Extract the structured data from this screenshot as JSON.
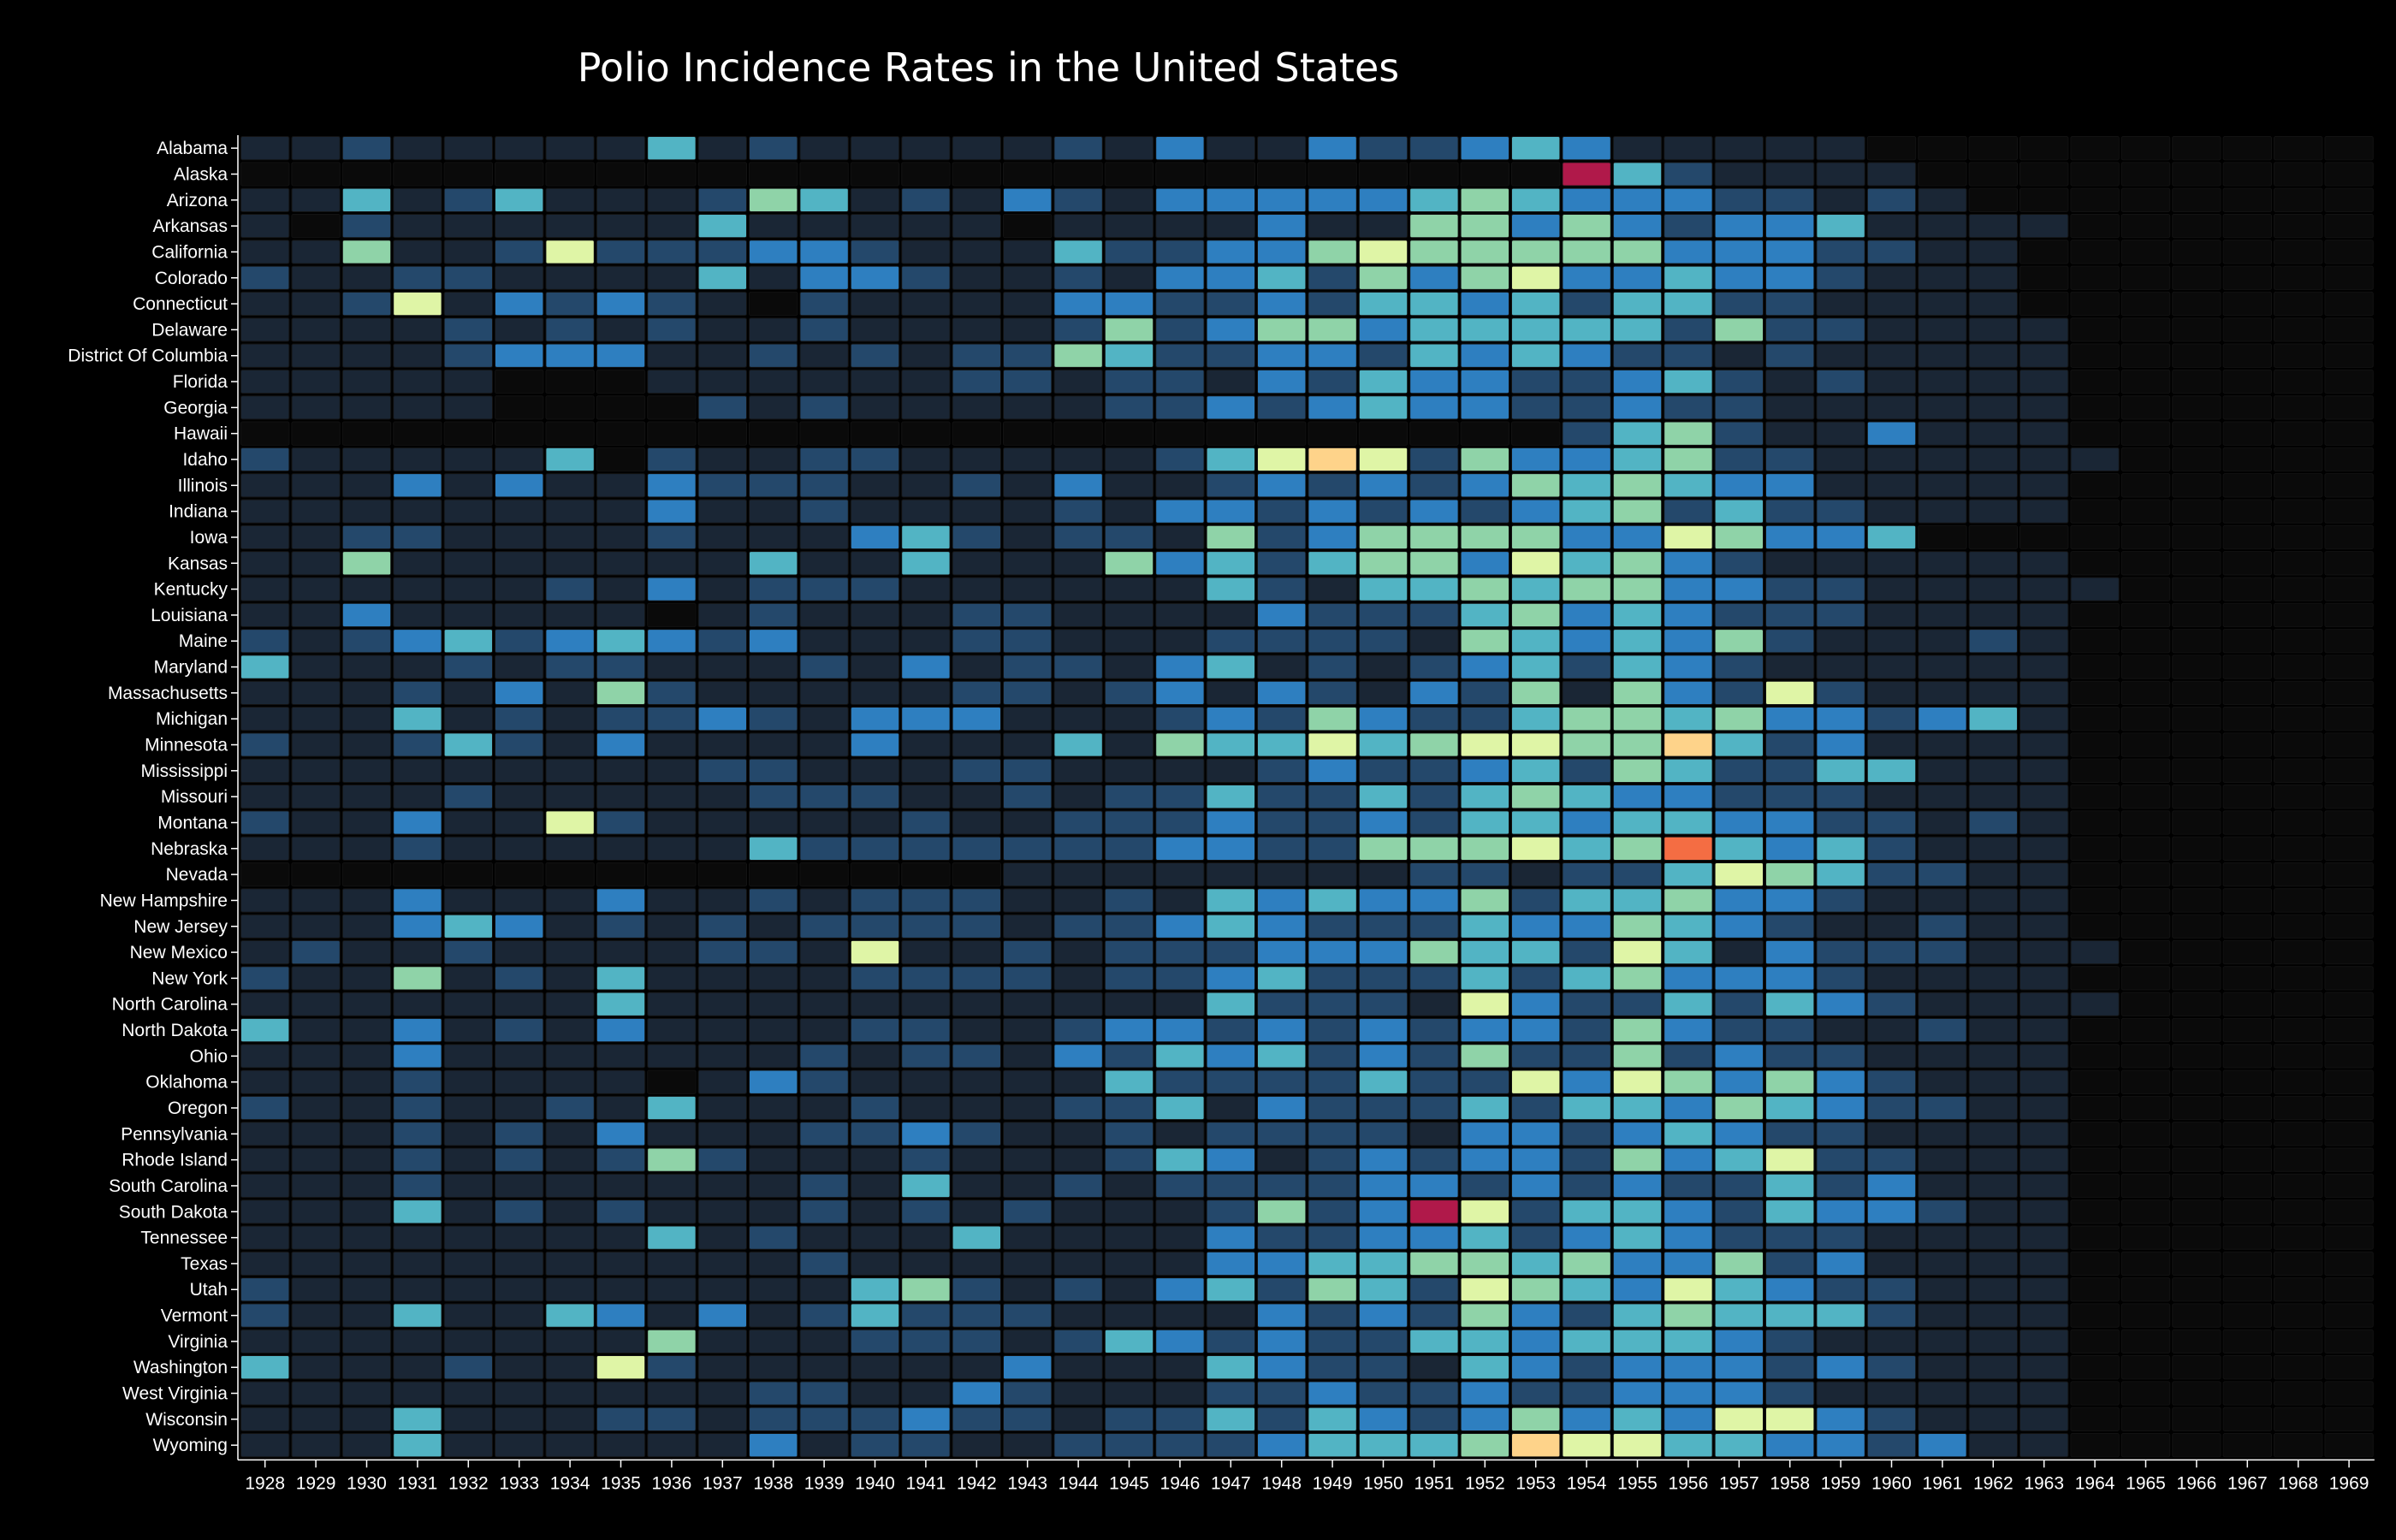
{
  "chart_data": {
    "type": "heatmap",
    "title": "Polio Incidence Rates in the United States",
    "colors": [
      "#0a0a0a",
      "#1a2635",
      "#24486b",
      "#2e7fc0",
      "#52b4c4",
      "#8fd3a8",
      "#dff5a6",
      "#fed38a",
      "#f46d43",
      "#b0194a"
    ],
    "columns": [
      "1928",
      "1929",
      "1930",
      "1931",
      "1932",
      "1933",
      "1934",
      "1935",
      "1936",
      "1937",
      "1938",
      "1939",
      "1940",
      "1941",
      "1942",
      "1943",
      "1944",
      "1945",
      "1946",
      "1947",
      "1948",
      "1949",
      "1950",
      "1951",
      "1952",
      "1953",
      "1954",
      "1955",
      "1956",
      "1957",
      "1958",
      "1959",
      "1960",
      "1961",
      "1962",
      "1963",
      "1964",
      "1965",
      "1966",
      "1967",
      "1968",
      "1969"
    ],
    "rows": [
      "Alabama",
      "Alaska",
      "Arizona",
      "Arkansas",
      "California",
      "Colorado",
      "Connecticut",
      "Delaware",
      "District Of Columbia",
      "Florida",
      "Georgia",
      "Hawaii",
      "Idaho",
      "Illinois",
      "Indiana",
      "Iowa",
      "Kansas",
      "Kentucky",
      "Louisiana",
      "Maine",
      "Maryland",
      "Massachusetts",
      "Michigan",
      "Minnesota",
      "Mississippi",
      "Missouri",
      "Montana",
      "Nebraska",
      "Nevada",
      "New Hampshire",
      "New Jersey",
      "New Mexico",
      "New York",
      "North Carolina",
      "North Dakota",
      "Ohio",
      "Oklahoma",
      "Oregon",
      "Pennsylvania",
      "Rhode Island",
      "South Carolina",
      "South Dakota",
      "Tennessee",
      "Texas",
      "Utah",
      "Vermont",
      "Virginia",
      "Washington",
      "West Virginia",
      "Wisconsin",
      "Wyoming"
    ],
    "values": [
      "112111114121111121311322343111110000000000",
      "000000000000000000000000009421111000000000",
      "114124111254121321333334543332212100000000",
      "102111111411111011113115535323341111000000",
      "115112622233211142233565555533322110000000",
      "211221111413321121334253563343321110000000",
      "112613232102111133223244342442211110000000",
      "111121212112111125235534444425221111000000",
      "111123331121212254223324343221211111000000",
      "111110001111112212213243322342121111000000",
      "111110000212111112232343322322111111000000",
      "000000000000000000000000002452113111000000",
      "211111402112211111246762533452211111100000",
      "111313113222112131123232354543311111000000",
      "111111113112111121332323234524221111000000",
      "112211112111342122152355553365334000000000",
      "115111111141141115342455364532111111000000",
      "111111213122211111142144545533221111100000",
      "113111110121112211113222453432221111000000",
      "212342343231112211122221543435211121000000",
      "411121221112131221341212342432111111000000",
      "111213152111112212313213251532621111000000",
      "111412122321333111232532245545332341000000",
      "211242131111311141544645665574231111000000",
      "111111111221112211112322342542244111000000",
      "111121111122211212242242454332221111000000",
      "211311621111121122232232443443322121000000",
      "111211111142222222332255564584342111000000",
      "000000000000000111111112212246542211000000",
      "111311131121222112143433524453321111000000",
      "111343121212222122343222433543211211000000",
      "121121111221611212223335442641322211100000",
      "211512141111222212234222424533321111000000",
      "111111141111111111142221632242432111100000",
      "411312131111221123323232332532211211000000",
      "111311111112122132434232522523221111000000",
      "111211110132111114222242263653532111000000",
      "211211214111211122413222424435432211000000",
      "111212131112232112122221332343221111000000",
      "111212125211121112431232332534622111000000",
      "111211111112141121222233232322423111000000",
      "111412121112121211125239624432433211000000",
      "111111114121114111132233423432221111000000",
      "111111111112111111133445545335231111000000",
      "211111111111452121342542654364322111000000",
      "211411431312422211113232532454442111000000",
      "111111115111222124323224434443211111000000",
      "411121162111111311143221432333232111000000",
      "111111111122113211122322322333211111000000",
      "111411122122232212242432353436632111000000",
      "111411111131221122223444576644332311000000"
    ]
  }
}
